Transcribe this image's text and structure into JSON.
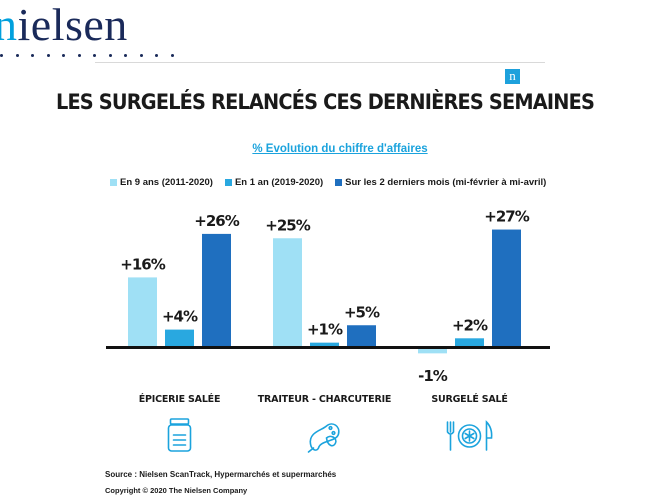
{
  "brand": {
    "logo_prefix": "n",
    "logo_rest": "ielsen",
    "badge": "n"
  },
  "colors": {
    "series_9ans": "#9fe0f5",
    "series_1an": "#29a8e0",
    "series_2mois": "#1f6fbf",
    "accent": "#1ba3dd"
  },
  "title": "LES SURGELÉS RELANCÉS CES DERNIÈRES SEMAINES",
  "subtitle": "% Evolution du chiffre d'affaires",
  "legend": [
    {
      "label": "En 9 ans (2011-2020)"
    },
    {
      "label": "En 1 an (2019-2020)"
    },
    {
      "label": "Sur les 2 derniers mois (mi-février à mi-avril)"
    }
  ],
  "chart_data": {
    "type": "bar",
    "categories": [
      "ÉPICERIE SALÉE",
      "TRAITEUR - CHARCUTERIE",
      "SURGELÉ SALÉ"
    ],
    "series": [
      {
        "name": "En 9 ans (2011-2020)",
        "values": [
          16,
          25,
          -1
        ],
        "labels": [
          "+16%",
          "+25%",
          "-1%"
        ]
      },
      {
        "name": "En 1 an (2019-2020)",
        "values": [
          4,
          1,
          2
        ],
        "labels": [
          "+4%",
          "+1%",
          "+2%"
        ]
      },
      {
        "name": "Sur les 2 derniers mois (mi-février à mi-avril)",
        "values": [
          26,
          5,
          27
        ],
        "labels": [
          "+26%",
          "+5%",
          "+27%"
        ]
      }
    ],
    "ylim": [
      -2,
      28
    ],
    "icons": [
      "jar-icon",
      "charcuterie-icon",
      "frozen-meal-icon"
    ]
  },
  "footer": {
    "source": "Source : Nielsen ScanTrack, Hypermarchés et supermarchés",
    "copyright": "Copyright © 2020 The Nielsen Company"
  }
}
